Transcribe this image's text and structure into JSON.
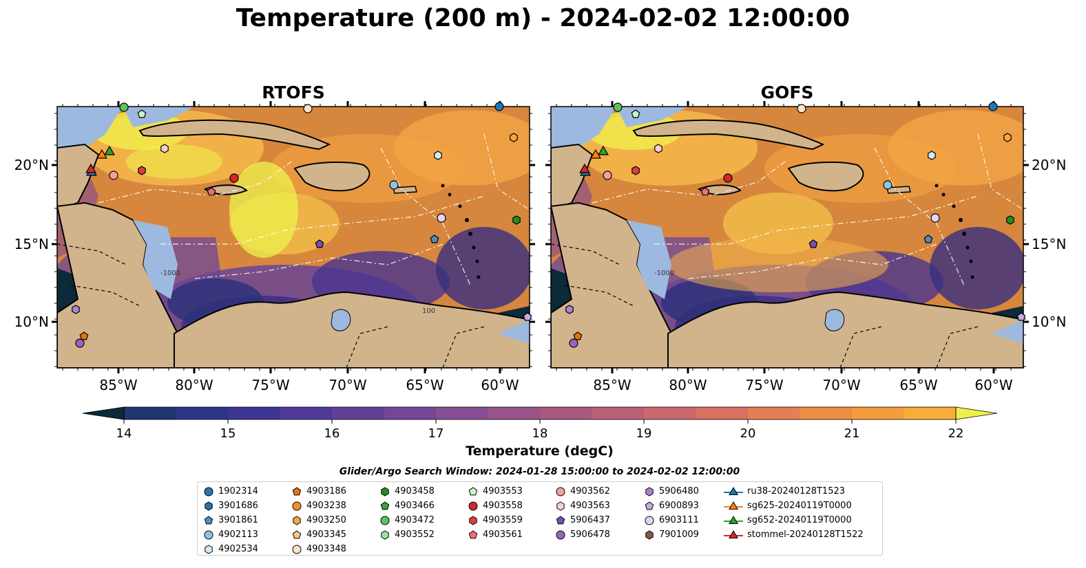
{
  "title": "Temperature (200 m) - 2024-02-02 12:00:00",
  "panels": [
    {
      "title": "RTOFS"
    },
    {
      "title": "GOFS"
    }
  ],
  "axes": {
    "lon_ticks": [
      "85°W",
      "80°W",
      "75°W",
      "70°W",
      "65°W",
      "60°W"
    ],
    "lat_ticks": [
      "20°N",
      "15°N",
      "10°N"
    ]
  },
  "colorbar": {
    "ticks": [
      "14",
      "15",
      "16",
      "17",
      "18",
      "19",
      "20",
      "21",
      "22"
    ],
    "label": "Temperature (degC)",
    "range": [
      14,
      22
    ],
    "extend": "both"
  },
  "map_contour_labels": [
    "-100",
    "-1000",
    "100"
  ],
  "search_window": "Glider/Argo Search Window: 2024-01-28 15:00:00 to 2024-02-02 12:00:00",
  "legend": [
    {
      "label": "1902314",
      "marker": "circle",
      "color": "#1f77b4"
    },
    {
      "label": "3901686",
      "marker": "hexagon",
      "color": "#2d6fa8"
    },
    {
      "label": "3901861",
      "marker": "pentagon",
      "color": "#4a90c4"
    },
    {
      "label": "4902113",
      "marker": "circle",
      "color": "#8fc3e3"
    },
    {
      "label": "4902534",
      "marker": "hexagon",
      "color": "#d4ebf7"
    },
    {
      "label": "4903186",
      "marker": "pentagon",
      "color": "#e8700c"
    },
    {
      "label": "4903238",
      "marker": "circle",
      "color": "#f5902e"
    },
    {
      "label": "4903250",
      "marker": "hexagon",
      "color": "#f8a24a"
    },
    {
      "label": "4903345",
      "marker": "pentagon",
      "color": "#fbc38a"
    },
    {
      "label": "4903348",
      "marker": "circle",
      "color": "#fde3c8"
    },
    {
      "label": "4903458",
      "marker": "hexagon",
      "color": "#1f8f1f"
    },
    {
      "label": "4903466",
      "marker": "pentagon",
      "color": "#36a536"
    },
    {
      "label": "4903472",
      "marker": "circle",
      "color": "#5bc45b"
    },
    {
      "label": "4903552",
      "marker": "hexagon",
      "color": "#9be39b"
    },
    {
      "label": "4903553",
      "marker": "pentagon",
      "color": "#c8f5c8"
    },
    {
      "label": "4903558",
      "marker": "circle",
      "color": "#d62728"
    },
    {
      "label": "4903559",
      "marker": "hexagon",
      "color": "#dc3f3f"
    },
    {
      "label": "4903561",
      "marker": "pentagon",
      "color": "#ee6f6f"
    },
    {
      "label": "4903562",
      "marker": "circle",
      "color": "#f4a0a0"
    },
    {
      "label": "4903563",
      "marker": "hexagon",
      "color": "#f9cfcf"
    },
    {
      "label": "5906437",
      "marker": "pentagon",
      "color": "#7b4fb8"
    },
    {
      "label": "5906478",
      "marker": "circle",
      "color": "#9467bd"
    },
    {
      "label": "5906480",
      "marker": "hexagon",
      "color": "#a984d0"
    },
    {
      "label": "6900893",
      "marker": "pentagon",
      "color": "#c7a9e6"
    },
    {
      "label": "6903111",
      "marker": "circle",
      "color": "#e5d3f5"
    },
    {
      "label": "7901009",
      "marker": "hexagon",
      "color": "#8c564b"
    },
    {
      "label": "ru38-20240128T1523",
      "marker": "triangle-line",
      "color": "#1f77b4"
    },
    {
      "label": "sg625-20240119T0000",
      "marker": "triangle-line",
      "color": "#ff7f0e"
    },
    {
      "label": "sg652-20240119T0000",
      "marker": "triangle-line",
      "color": "#2ca02c"
    },
    {
      "label": "stommel-20240128T1522",
      "marker": "triangle-line",
      "color": "#d62728"
    }
  ],
  "colors": {
    "land": "#d2b48c",
    "shelf": "#9db9e0",
    "deep_cold": "#0b2a3a",
    "warm": "#f5a245",
    "hot": "#f0f04a"
  }
}
